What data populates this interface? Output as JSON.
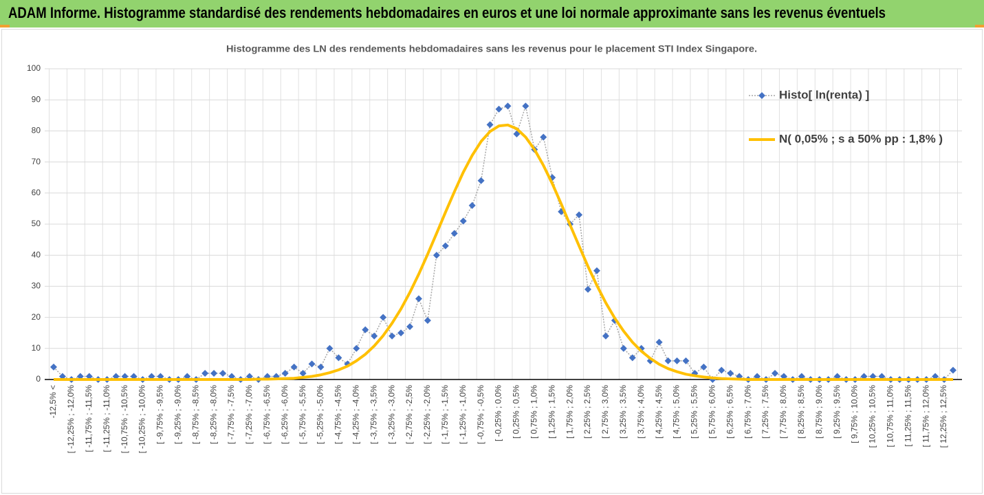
{
  "header": {
    "title": "ADAM Informe. Histogramme standardisé des rendements hebdomadaires en euros et une loi normale approximante sans les revenus éventuels"
  },
  "chart_data": {
    "type": "line",
    "title": "Histogramme des LN des rendements hebdomadaires sans les revenus pour le placement STI Index Singapore.",
    "categories": [
      "-12,5% <",
      null,
      "[ -12,25% ; -12,0%",
      null,
      "[ -11,75% ; -11,5%",
      null,
      "[ -11,25% ; -11,0%",
      null,
      "[ -10,75% ; -10,5%",
      null,
      "[ -10,25% ; -10,0%",
      null,
      "[ -9,75% ; -9,5%",
      null,
      "[ -9,25% ; -9,0%",
      null,
      "[ -8,75% ; -8,5%",
      null,
      "[ -8,25% ; -8,0%",
      null,
      "[ -7,75% ; -7,5%",
      null,
      "[ -7,25% ; -7,0%",
      null,
      "[ -6,75% ; -6,5%",
      null,
      "[ -6,25% ; -6,0%",
      null,
      "[ -5,75% ; -5,5%",
      null,
      "[ -5,25% ; -5,0%",
      null,
      "[ -4,75% ; -4,5%",
      null,
      "[ -4,25% ; -4,0%",
      null,
      "[ -3,75% ; -3,5%",
      null,
      "[ -3,25% ; -3,0%",
      null,
      "[ -2,75% ; -2,5%",
      null,
      "[ -2,25% ; -2,0%",
      null,
      "[ -1,75% ; -1,5%",
      null,
      "[ -1,25% ; -1,0%",
      null,
      "[ -0,75% ; -0,5%",
      null,
      "[ -0,25% ; 0,0%",
      null,
      "[ 0,25% ; 0,5%",
      null,
      "[ 0,75% ; 1,0%",
      null,
      "[ 1,25% ; 1,5%",
      null,
      "[ 1,75% ; 2,0%",
      null,
      "[ 2,25% ; 2,5%",
      null,
      "[ 2,75% ; 3,0%",
      null,
      "[ 3,25% ; 3,5%",
      null,
      "[ 3,75% ; 4,0%",
      null,
      "[ 4,25% ; 4,5%",
      null,
      "[ 4,75% ; 5,0%",
      null,
      "[ 5,25% ; 5,5%",
      null,
      "[ 5,75% ; 6,0%",
      null,
      "[ 6,25% ; 6,5%",
      null,
      "[ 6,75% ; 7,0%",
      null,
      "[ 7,25% ; 7,5%",
      null,
      "[ 7,75% ; 8,0%",
      null,
      "[ 8,25% ; 8,5%",
      null,
      "[ 8,75% ; 9,0%",
      null,
      "[ 9,25% ; 9,5%",
      null,
      "[ 9,75% ; 10,0%",
      null,
      "[ 10,25% ; 10,5%",
      null,
      "[ 10,75% ; 11,0%",
      null,
      "[ 11,25% ; 11,5%",
      null,
      "[ 11,75% ; 12,0%",
      null,
      "[ 12,25% ; 12,5%",
      null
    ],
    "series": [
      {
        "name": "Histo[ ln(renta) ]",
        "color": "#4472c4",
        "line_color": "#a5a5a5",
        "marker": "diamond",
        "values": [
          4,
          1,
          0,
          1,
          1,
          0,
          0,
          1,
          1,
          1,
          0,
          1,
          1,
          0,
          0,
          1,
          0,
          2,
          2,
          2,
          1,
          0,
          1,
          0,
          1,
          1,
          2,
          4,
          2,
          5,
          4,
          10,
          7,
          5,
          10,
          16,
          14,
          20,
          14,
          15,
          17,
          26,
          19,
          40,
          43,
          47,
          51,
          56,
          64,
          82,
          87,
          88,
          79,
          88,
          74,
          78,
          65,
          54,
          50,
          53,
          29,
          35,
          14,
          19,
          10,
          7,
          10,
          6,
          12,
          6,
          6,
          6,
          2,
          4,
          0,
          3,
          2,
          1,
          0,
          1,
          0,
          2,
          1,
          0,
          1,
          0,
          0,
          0,
          1,
          0,
          0,
          1,
          1,
          1,
          0,
          0,
          0,
          0,
          0,
          1,
          0,
          3
        ]
      },
      {
        "name": "N( 0,05% ; s a 50% pp : 1,8% )",
        "color": "#ffc000",
        "values": [
          0,
          0,
          0,
          0,
          0,
          0,
          0,
          0,
          0,
          0,
          0,
          0,
          0,
          0,
          0,
          0,
          0,
          0,
          0,
          0,
          0,
          0,
          0,
          0.1,
          0.1,
          0.2,
          0.3,
          0.4,
          0.7,
          1.0,
          1.5,
          2.2,
          3.1,
          4.3,
          6.0,
          8.1,
          10.8,
          14.1,
          18.1,
          22.7,
          28.0,
          33.9,
          40.3,
          47.0,
          53.8,
          60.4,
          66.7,
          72.1,
          76.6,
          79.8,
          81.6,
          81.9,
          80.7,
          78.0,
          74.0,
          68.9,
          63.0,
          56.5,
          49.7,
          43.0,
          36.4,
          30.3,
          24.7,
          19.8,
          15.6,
          12.0,
          9.1,
          6.8,
          4.9,
          3.5,
          2.5,
          1.7,
          1.2,
          0.8,
          0.5,
          0.3,
          0.2,
          0.1,
          0,
          0,
          0,
          0,
          0,
          0,
          0,
          0,
          0,
          0,
          0,
          0,
          0,
          0,
          0,
          0,
          0,
          0,
          0,
          0,
          0,
          0,
          0,
          0
        ]
      }
    ],
    "ylim": [
      0,
      100
    ],
    "yticks": [
      0,
      10,
      20,
      30,
      40,
      50,
      60,
      70,
      80,
      90,
      100
    ],
    "grid": true,
    "legend": "upper right"
  }
}
